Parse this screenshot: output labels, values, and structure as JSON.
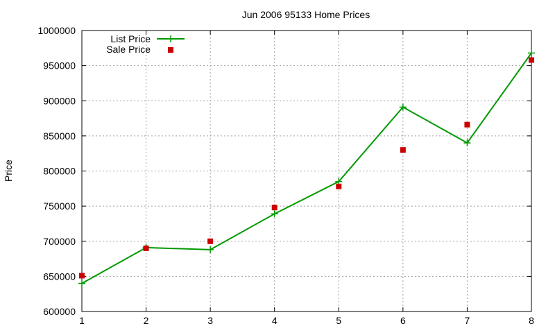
{
  "chart_data": {
    "type": "line",
    "title": "Jun 2006 95133 Home Prices",
    "xlabel": "",
    "ylabel": "Price",
    "x": [
      1,
      2,
      3,
      4,
      5,
      6,
      7,
      8
    ],
    "xlim": [
      1,
      8
    ],
    "ylim": [
      600000,
      1000000
    ],
    "xticks": [
      "1",
      "2",
      "3",
      "4",
      "5",
      "6",
      "7",
      "8"
    ],
    "yticks": [
      "600000",
      "650000",
      "700000",
      "750000",
      "800000",
      "850000",
      "900000",
      "950000",
      "1000000"
    ],
    "grid": true,
    "legend_position": "top-left",
    "series": [
      {
        "name": "List Price",
        "style": "linespoints",
        "marker": "plus",
        "color": "#009900",
        "values": [
          640000,
          691000,
          688000,
          739000,
          785000,
          891000,
          840000,
          968000
        ]
      },
      {
        "name": "Sale Price",
        "style": "points",
        "marker": "square",
        "color": "#cc0000",
        "values": [
          651000,
          690000,
          700000,
          748000,
          778000,
          830000,
          866000,
          958000
        ]
      }
    ]
  }
}
